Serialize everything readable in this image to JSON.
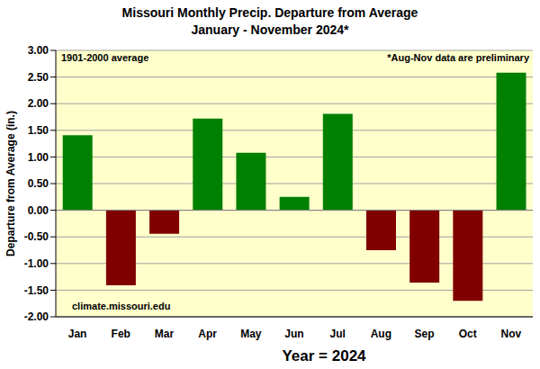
{
  "chart_data": {
    "type": "bar",
    "title": "Missouri Monthly Precip. Departure from Average",
    "subtitle": "January - November 2024*",
    "x_label": "Year = 2024",
    "y_label": "Departure from Average (in.)",
    "annotations": [
      "1901-2000 average",
      "*Aug-Nov data are preliminary",
      "climate.missouri.edu"
    ],
    "categories": [
      "Jan",
      "Feb",
      "Mar",
      "Apr",
      "May",
      "Jun",
      "Jul",
      "Aug",
      "Sep",
      "Oct",
      "Nov"
    ],
    "values": [
      1.41,
      -1.41,
      -0.44,
      1.72,
      1.08,
      0.25,
      1.81,
      -0.75,
      -1.36,
      -1.7,
      2.58
    ],
    "colors": [
      "#008000",
      "#800000",
      "#800000",
      "#008000",
      "#008000",
      "#008000",
      "#008000",
      "#800000",
      "#800000",
      "#800000",
      "#008000"
    ],
    "ylim": [
      -2,
      3
    ],
    "yticks": [
      {
        "value": -2,
        "label": "-2.00"
      },
      {
        "value": -1.5,
        "label": "-1.50"
      },
      {
        "value": -1,
        "label": "-1.00"
      },
      {
        "value": -0.5,
        "label": "-0.50"
      },
      {
        "value": 0,
        "label": "0.00"
      },
      {
        "value": 0.5,
        "label": "0.50"
      },
      {
        "value": 1,
        "label": "1.00"
      },
      {
        "value": 1.5,
        "label": "1.50"
      },
      {
        "value": 2,
        "label": "2.00"
      },
      {
        "value": 2.5,
        "label": "2.50"
      },
      {
        "value": 3,
        "label": "3.00"
      }
    ],
    "grid": true
  }
}
